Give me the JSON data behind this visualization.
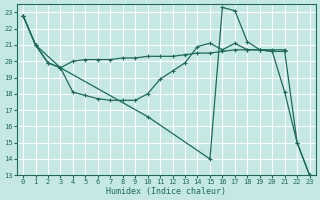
{
  "xlabel": "Humidex (Indice chaleur)",
  "bg_color": "#c5e8e5",
  "grid_color": "#ffffff",
  "line_color": "#1a6b5a",
  "xlim": [
    -0.5,
    23.5
  ],
  "ylim": [
    13.0,
    23.5
  ],
  "yticks": [
    13,
    14,
    15,
    16,
    17,
    18,
    19,
    20,
    21,
    22,
    23
  ],
  "xticks": [
    0,
    1,
    2,
    3,
    4,
    5,
    6,
    7,
    8,
    9,
    10,
    11,
    12,
    13,
    14,
    15,
    16,
    17,
    18,
    19,
    20,
    21,
    22,
    23
  ],
  "line1_x": [
    0,
    1,
    2,
    3,
    4,
    5,
    6,
    7,
    8,
    9,
    10,
    11,
    12,
    13,
    14,
    15,
    16,
    17,
    18,
    19,
    20,
    21,
    22,
    23
  ],
  "line1_y": [
    22.8,
    21.0,
    19.9,
    19.6,
    18.1,
    17.9,
    17.7,
    17.6,
    17.6,
    17.6,
    18.0,
    18.9,
    19.4,
    19.9,
    20.9,
    21.1,
    20.7,
    21.1,
    20.7,
    20.7,
    20.6,
    18.1,
    15.0,
    13.0
  ],
  "line2_x": [
    0,
    1,
    2,
    3,
    4,
    5,
    6,
    7,
    8,
    9,
    10,
    11,
    12,
    13,
    14,
    15,
    16,
    17,
    18,
    19,
    20,
    21
  ],
  "line2_y": [
    22.8,
    21.0,
    19.9,
    19.6,
    20.0,
    20.1,
    20.1,
    20.1,
    20.2,
    20.2,
    20.3,
    20.3,
    20.3,
    20.4,
    20.5,
    20.5,
    20.6,
    20.7,
    20.7,
    20.7,
    20.7,
    20.7
  ],
  "line3_x": [
    0,
    1,
    3,
    10,
    15,
    16,
    17,
    18,
    19,
    20,
    21,
    22,
    23
  ],
  "line3_y": [
    22.8,
    21.0,
    19.6,
    16.6,
    14.0,
    23.3,
    23.1,
    21.2,
    20.7,
    20.6,
    20.6,
    15.0,
    13.0
  ]
}
